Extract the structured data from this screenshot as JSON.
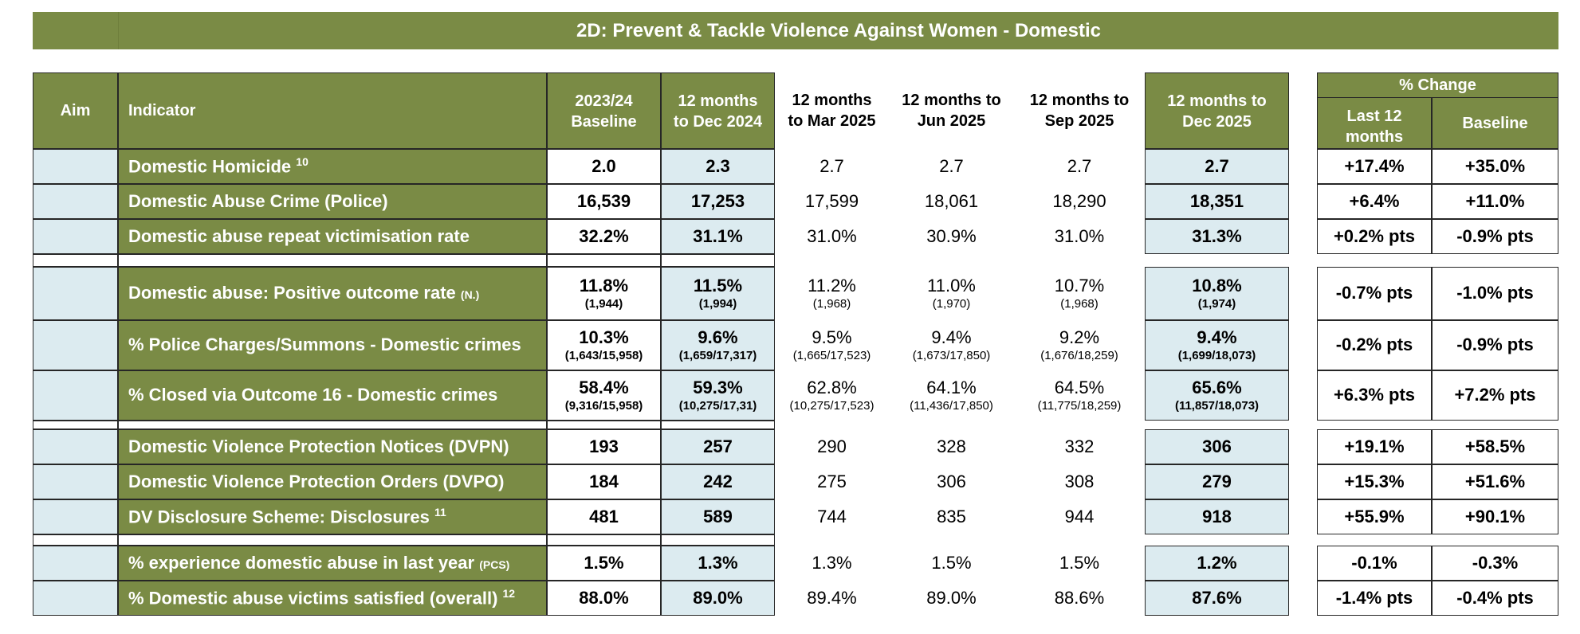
{
  "title": "2D: Prevent & Tackle Violence Against Women - Domestic",
  "headers": {
    "aim": "Aim",
    "indicator": "Indicator",
    "baseline": [
      "2023/24",
      "Baseline"
    ],
    "dec2024": [
      "12 months",
      "to Dec 2024"
    ],
    "mar2025": [
      "12 months",
      "to Mar 2025"
    ],
    "jun2025": [
      "12 months to",
      "Jun 2025"
    ],
    "sep2025": [
      "12 months to",
      "Sep 2025"
    ],
    "dec2025": [
      "12 months to",
      "Dec 2025"
    ],
    "pct_change": "% Change",
    "last12": [
      "Last 12",
      "months"
    ],
    "baseline_change": "Baseline"
  },
  "rows": [
    {
      "indicator": "Domestic Homicide ",
      "sup": "10",
      "baseline": "2.0",
      "dec2024": "2.3",
      "mar2025": "2.7",
      "jun2025": "2.7",
      "sep2025": "2.7",
      "dec2025": "2.7",
      "last12": "+17.4%",
      "base_change": "+35.0%"
    },
    {
      "indicator": "Domestic Abuse Crime (Police)",
      "baseline": "16,539",
      "dec2024": "17,253",
      "mar2025": "17,599",
      "jun2025": "18,061",
      "sep2025": "18,290",
      "dec2025": "18,351",
      "last12": "+6.4%",
      "base_change": "+11.0%"
    },
    {
      "indicator": "Domestic abuse repeat victimisation rate",
      "baseline": "32.2%",
      "dec2024": "31.1%",
      "mar2025": "31.0%",
      "jun2025": "30.9%",
      "sep2025": "31.0%",
      "dec2025": "31.3%",
      "last12": "+0.2% pts",
      "base_change": "-0.9% pts"
    },
    {
      "indicator": "Domestic abuse: Positive outcome rate ",
      "small": "(N.)",
      "baseline": "11.8%",
      "baseline_sub": "(1,944)",
      "dec2024": "11.5%",
      "dec2024_sub": "(1,994)",
      "mar2025": "11.2%",
      "mar2025_sub": "(1,968)",
      "jun2025": "11.0%",
      "jun2025_sub": "(1,970)",
      "sep2025": "10.7%",
      "sep2025_sub": "(1,968)",
      "dec2025": "10.8%",
      "dec2025_sub": "(1,974)",
      "last12": "-0.7% pts",
      "base_change": "-1.0% pts"
    },
    {
      "indicator": "% Police Charges/Summons - Domestic crimes",
      "baseline": "10.3%",
      "baseline_sub": "(1,643/15,958)",
      "dec2024": "9.6%",
      "dec2024_sub": "(1,659/17,317)",
      "mar2025": "9.5%",
      "mar2025_sub": "(1,665/17,523)",
      "jun2025": "9.4%",
      "jun2025_sub": "(1,673/17,850)",
      "sep2025": "9.2%",
      "sep2025_sub": "(1,676/18,259)",
      "dec2025": "9.4%",
      "dec2025_sub": "(1,699/18,073)",
      "last12": "-0.2% pts",
      "base_change": "-0.9% pts"
    },
    {
      "indicator": "% Closed via Outcome 16 - Domestic crimes",
      "baseline": "58.4%",
      "baseline_sub": "(9,316/15,958)",
      "dec2024": "59.3%",
      "dec2024_sub": "(10,275/17,31)",
      "mar2025": "62.8%",
      "mar2025_sub": "(10,275/17,523)",
      "jun2025": "64.1%",
      "jun2025_sub": "(11,436/17,850)",
      "sep2025": "64.5%",
      "sep2025_sub": "(11,775/18,259)",
      "dec2025": "65.6%",
      "dec2025_sub": "(11,857/18,073)",
      "last12": "+6.3% pts",
      "base_change": "+7.2% pts"
    },
    {
      "indicator": "Domestic Violence Protection Notices (DVPN)",
      "baseline": "193",
      "dec2024": "257",
      "mar2025": "290",
      "jun2025": "328",
      "sep2025": "332",
      "dec2025": "306",
      "last12": "+19.1%",
      "base_change": "+58.5%"
    },
    {
      "indicator": "Domestic Violence Protection Orders (DVPO)",
      "baseline": "184",
      "dec2024": "242",
      "mar2025": "275",
      "jun2025": "306",
      "sep2025": "308",
      "dec2025": "279",
      "last12": "+15.3%",
      "base_change": "+51.6%"
    },
    {
      "indicator": "DV Disclosure Scheme: Disclosures ",
      "sup": "11",
      "baseline": "481",
      "dec2024": "589",
      "mar2025": "744",
      "jun2025": "835",
      "sep2025": "944",
      "dec2025": "918",
      "last12": "+55.9%",
      "base_change": "+90.1%"
    },
    {
      "indicator": "% experience domestic abuse in last year ",
      "small": "(PCS)",
      "baseline": "1.5%",
      "dec2024": "1.3%",
      "mar2025": "1.3%",
      "jun2025": "1.5%",
      "sep2025": "1.5%",
      "dec2025": "1.2%",
      "last12": "-0.1%",
      "base_change": "-0.3%"
    },
    {
      "indicator": "% Domestic abuse victims satisfied (overall) ",
      "sup": "12",
      "baseline": "88.0%",
      "dec2024": "89.0%",
      "mar2025": "89.4%",
      "jun2025": "89.0%",
      "sep2025": "88.6%",
      "dec2025": "87.6%",
      "last12": "-1.4% pts",
      "base_change": "-0.4% pts"
    }
  ],
  "colors": {
    "green": "#7a8b45",
    "light_blue": "#dcebf0",
    "border": "#262626"
  }
}
